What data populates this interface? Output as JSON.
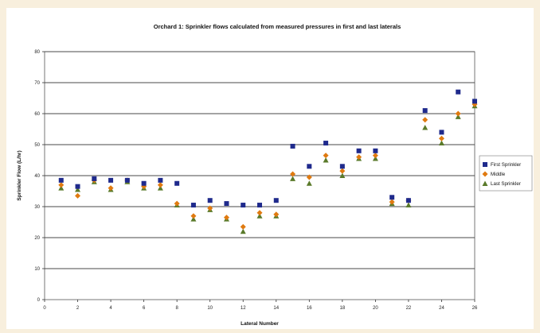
{
  "chart_data": {
    "type": "scatter",
    "title": "Orchard 1: Sprinkler flows calculated from measured pressures in first and last laterals",
    "xlabel": "Lateral Number",
    "ylabel": "Sprinkler Flow (L/hr)",
    "xlim": [
      0,
      26
    ],
    "ylim": [
      0,
      80
    ],
    "x_ticks": [
      0,
      2,
      4,
      6,
      8,
      10,
      12,
      14,
      16,
      18,
      20,
      22,
      24,
      26
    ],
    "y_ticks": [
      0,
      10,
      20,
      30,
      40,
      50,
      60,
      70,
      80
    ],
    "grid": "horizontal",
    "legend_position": "right",
    "series": [
      {
        "name": "First Sprinkler",
        "marker": "square",
        "color": "#1f2a8c",
        "x": [
          1,
          2,
          3,
          4,
          5,
          6,
          7,
          8,
          9,
          10,
          11,
          12,
          13,
          14,
          15,
          16,
          17,
          18,
          19,
          20,
          21,
          22,
          23,
          24,
          25,
          26
        ],
        "y": [
          38.5,
          36.5,
          39,
          38.5,
          38.5,
          37.5,
          38.5,
          37.5,
          30.5,
          32,
          31,
          30.5,
          30.5,
          32,
          49.5,
          43,
          50.5,
          43,
          48,
          48,
          33,
          32,
          61,
          54,
          67,
          64
        ]
      },
      {
        "name": "Middle",
        "marker": "diamond",
        "color": "#e07a10",
        "x": [
          1,
          2,
          3,
          4,
          5,
          6,
          7,
          8,
          9,
          10,
          11,
          12,
          13,
          14,
          15,
          16,
          17,
          18,
          19,
          20,
          21,
          22,
          23,
          24,
          25,
          26
        ],
        "y": [
          37,
          33.5,
          38.5,
          36,
          38.5,
          36.5,
          37,
          31,
          27,
          29.5,
          26.5,
          23.5,
          28,
          27.5,
          40.5,
          39.5,
          46.5,
          41.5,
          46,
          46.5,
          31.5,
          32,
          58,
          52,
          60,
          63
        ]
      },
      {
        "name": "Last Sprinkler",
        "marker": "triangle",
        "color": "#5a7a2a",
        "x": [
          1,
          2,
          3,
          4,
          5,
          6,
          7,
          8,
          9,
          10,
          11,
          12,
          13,
          14,
          15,
          16,
          17,
          18,
          19,
          20,
          21,
          22,
          23,
          24,
          25,
          26
        ],
        "y": [
          36,
          35.5,
          38,
          35.5,
          38,
          36,
          36,
          30.5,
          26,
          29,
          26,
          22,
          27,
          27,
          39,
          37.5,
          45,
          40,
          45.5,
          45.5,
          31,
          30.5,
          55.5,
          50.5,
          59,
          62.5
        ]
      }
    ]
  }
}
